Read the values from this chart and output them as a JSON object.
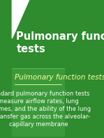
{
  "top_bg": "#2e8b2e",
  "bottom_bg": "#3a9a3a",
  "title_text": "Pulmonary function\ntests",
  "title_color": "#ffffff",
  "title_fontsize": 10.5,
  "heading_text": "Pulmonary function tests",
  "heading_color": "#ffff99",
  "heading_fontsize": 7.5,
  "body_text": "Standard pulmonary function tests\nmeasure airflow rates, lung\nvolumes, and the ability of the lung\nto transfer gas across the alveolar-\ncapillary membrane",
  "body_color": "#ffffff",
  "body_fontsize": 6.0,
  "divider_color": "#5ab85a",
  "triangle_color": "#ffffff",
  "underline_color": "#ffff99"
}
